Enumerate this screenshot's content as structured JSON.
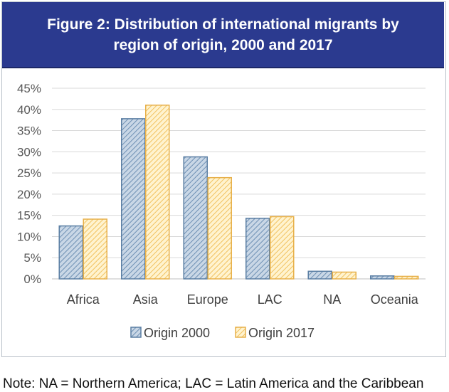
{
  "chart_data": {
    "type": "bar",
    "title": "Figure 2:  Distribution of international migrants by region of origin, 2000 and 2017",
    "categories": [
      "Africa",
      "Asia",
      "Europe",
      "LAC",
      "NA",
      "Oceania"
    ],
    "series": [
      {
        "name": "Origin 2000",
        "values": [
          12.5,
          37.8,
          28.8,
          14.3,
          1.8,
          0.7
        ],
        "color": "#9fb6cf",
        "stroke": "#5a7ea3"
      },
      {
        "name": "Origin 2017",
        "values": [
          14.1,
          41.0,
          23.9,
          14.7,
          1.6,
          0.6
        ],
        "color": "#ffe7a8",
        "stroke": "#e7b04a"
      }
    ],
    "ylim": [
      0,
      45
    ],
    "yticks": [
      "0%",
      "5%",
      "10%",
      "15%",
      "20%",
      "25%",
      "30%",
      "35%",
      "40%",
      "45%"
    ],
    "grid": true,
    "legend": "bottom-center"
  },
  "note": "Note: NA = Northern America; LAC = Latin America and the Caribbean"
}
